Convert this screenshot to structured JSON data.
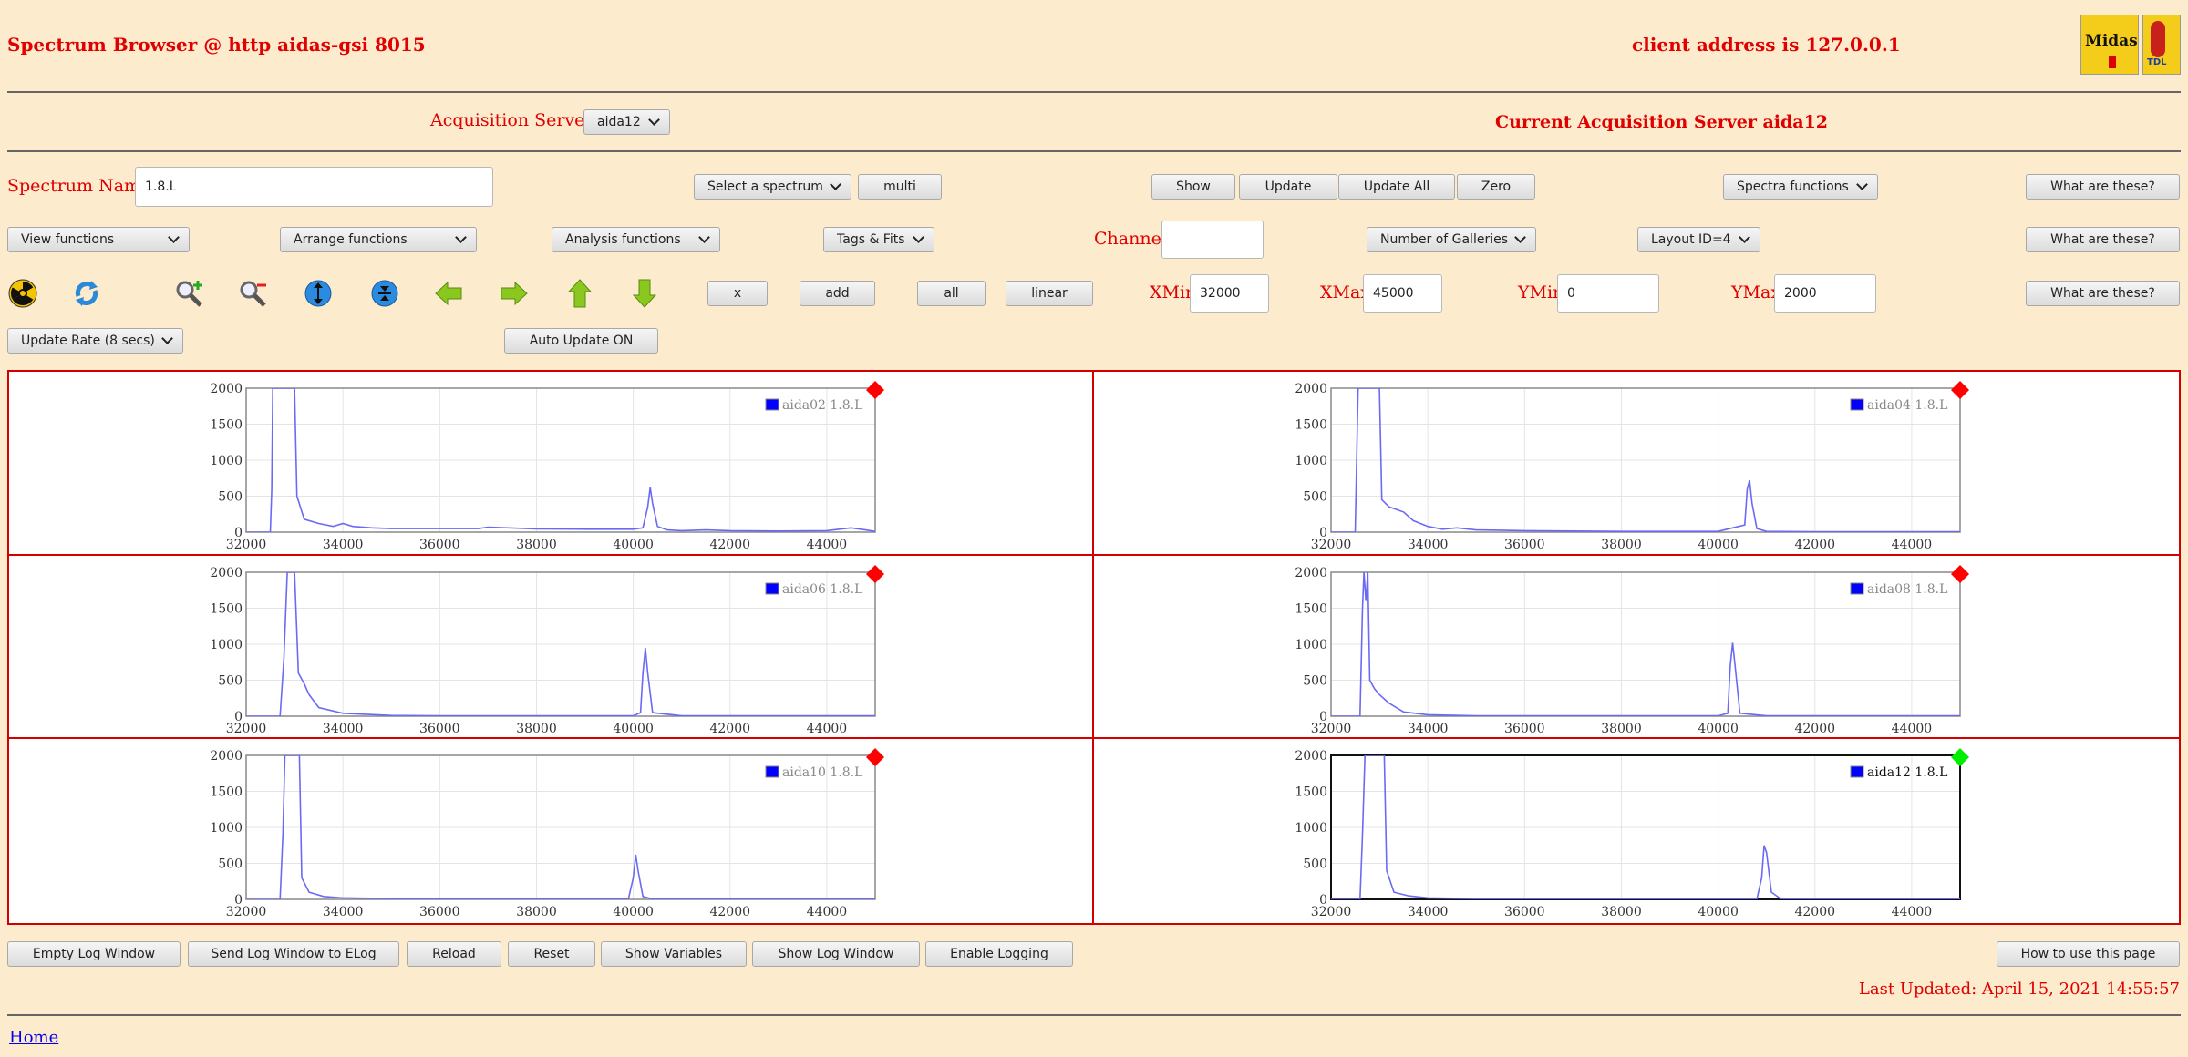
{
  "header": {
    "title": "Spectrum Browser @ http aidas-gsi 8015",
    "client_address": "client address is 127.0.0.1",
    "logo1_text": "Midas",
    "logo2_text": "TDL"
  },
  "acq": {
    "label": "Acquisition Servers",
    "selected": "aida12",
    "current": "Current Acquisition Server aida12"
  },
  "spectrum": {
    "name_label": "Spectrum Name:",
    "name_value": "1.8.L",
    "select_label": "Select a spectrum",
    "multi_label": "multi",
    "show_label": "Show",
    "update_label": "Update",
    "update_all_label": "Update All",
    "zero_label": "Zero",
    "spectra_functions_label": "Spectra functions",
    "help1_label": "What are these?"
  },
  "functions": {
    "view": "View functions",
    "arrange": "Arrange functions",
    "analysis": "Analysis functions",
    "tags": "Tags & Fits",
    "channel_label": "Channel:",
    "channel_value": "",
    "galleries": "Number of Galleries",
    "layout": "Layout ID=4",
    "help2_label": "What are these?"
  },
  "toolbar": {
    "icons": [
      "radiation-icon",
      "refresh-icon",
      "zoom-in-icon",
      "zoom-out-icon",
      "expand-vertical-icon",
      "compress-vertical-icon",
      "arrow-left-icon",
      "arrow-right-icon",
      "arrow-up-icon",
      "arrow-down-icon"
    ],
    "x_label": "x",
    "add_label": "add",
    "all_label": "all",
    "linear_label": "linear",
    "xmin_label": "XMin",
    "xmin_value": "32000",
    "xmax_label": "XMax",
    "xmax_value": "45000",
    "ymin_label": "YMin",
    "ymin_value": "0",
    "ymax_label": "YMax",
    "ymax_value": "2000",
    "help3_label": "What are these?"
  },
  "rate": {
    "update_rate": "Update Rate (8 secs)",
    "auto_update": "Auto Update ON"
  },
  "colors": {
    "background": "#fdebcd",
    "accent": "#e00000",
    "series": "#0000ff",
    "line": "#6a6af5",
    "status_red": "#ff0000",
    "status_green": "#00ee00"
  },
  "chart_data": [
    {
      "type": "line",
      "name": "aida02 1.8.L",
      "status": "red",
      "xlim": [
        32000,
        45000
      ],
      "ylim": [
        0,
        2000
      ],
      "x_ticks": [
        "32000",
        "34000",
        "36000",
        "38000",
        "40000",
        "42000",
        "44000"
      ],
      "y_ticks": [
        "0",
        "500",
        "1000",
        "1500",
        "2000"
      ],
      "x": [
        32000,
        32500,
        32530,
        32550,
        32600,
        33000,
        33050,
        33200,
        33500,
        33800,
        34000,
        34200,
        34600,
        35000,
        36000,
        36800,
        37000,
        38000,
        39000,
        40000,
        40200,
        40300,
        40350,
        40400,
        40500,
        40700,
        41000,
        41500,
        42000,
        43000,
        44000,
        44500,
        44800,
        45000
      ],
      "y": [
        0,
        0,
        600,
        2000,
        2000,
        2000,
        500,
        180,
        120,
        80,
        120,
        80,
        60,
        50,
        50,
        50,
        70,
        45,
        40,
        40,
        60,
        350,
        620,
        400,
        80,
        30,
        20,
        30,
        20,
        15,
        20,
        60,
        30,
        10
      ]
    },
    {
      "type": "line",
      "name": "aida04 1.8.L",
      "status": "red",
      "xlim": [
        32000,
        45000
      ],
      "ylim": [
        0,
        2000
      ],
      "x_ticks": [
        "32000",
        "34000",
        "36000",
        "38000",
        "40000",
        "42000",
        "44000"
      ],
      "y_ticks": [
        "0",
        "500",
        "1000",
        "1500",
        "2000"
      ],
      "x": [
        32000,
        32500,
        32560,
        32600,
        33000,
        33050,
        33200,
        33500,
        33700,
        34000,
        34300,
        34600,
        35000,
        36000,
        38000,
        40000,
        40550,
        40600,
        40650,
        40700,
        40800,
        41000,
        42000,
        44000,
        45000
      ],
      "y": [
        0,
        0,
        2000,
        2000,
        2000,
        450,
        350,
        280,
        160,
        80,
        40,
        60,
        30,
        20,
        10,
        10,
        100,
        600,
        720,
        400,
        50,
        10,
        5,
        5,
        5
      ]
    },
    {
      "type": "line",
      "name": "aida06 1.8.L",
      "status": "red",
      "xlim": [
        32000,
        45000
      ],
      "ylim": [
        0,
        2000
      ],
      "x_ticks": [
        "32000",
        "34000",
        "36000",
        "38000",
        "40000",
        "42000",
        "44000"
      ],
      "y_ticks": [
        "0",
        "500",
        "1000",
        "1500",
        "2000"
      ],
      "x": [
        32000,
        32700,
        32780,
        32850,
        33000,
        33080,
        33200,
        33300,
        33500,
        34000,
        35000,
        36000,
        38000,
        40000,
        40150,
        40200,
        40250,
        40300,
        40400,
        41000,
        42000,
        44000,
        45000
      ],
      "y": [
        0,
        0,
        800,
        2000,
        2000,
        600,
        450,
        300,
        120,
        40,
        10,
        5,
        5,
        5,
        50,
        600,
        950,
        600,
        50,
        5,
        5,
        5,
        5
      ]
    },
    {
      "type": "line",
      "name": "aida08 1.8.L",
      "status": "red",
      "xlim": [
        32000,
        45000
      ],
      "ylim": [
        0,
        2000
      ],
      "x_ticks": [
        "32000",
        "34000",
        "36000",
        "38000",
        "40000",
        "42000",
        "44000"
      ],
      "y_ticks": [
        "0",
        "500",
        "1000",
        "1500",
        "2000"
      ],
      "x": [
        32000,
        32600,
        32650,
        32680,
        32720,
        32760,
        32800,
        32900,
        33000,
        33200,
        33500,
        34000,
        35000,
        36000,
        38000,
        40000,
        40200,
        40250,
        40300,
        40350,
        40450,
        41000,
        42000,
        44000,
        45000
      ],
      "y": [
        0,
        0,
        1500,
        2000,
        1600,
        2000,
        500,
        380,
        300,
        180,
        60,
        20,
        5,
        5,
        5,
        5,
        40,
        700,
        1020,
        700,
        40,
        5,
        5,
        5,
        5
      ]
    },
    {
      "type": "line",
      "name": "aida10 1.8.L",
      "status": "red",
      "xlim": [
        32000,
        45000
      ],
      "ylim": [
        0,
        2000
      ],
      "x_ticks": [
        "32000",
        "34000",
        "36000",
        "38000",
        "40000",
        "42000",
        "44000"
      ],
      "y_ticks": [
        "0",
        "500",
        "1000",
        "1500",
        "2000"
      ],
      "x": [
        32000,
        32700,
        32760,
        32800,
        33100,
        33150,
        33300,
        33600,
        34000,
        35000,
        36000,
        38000,
        39900,
        40000,
        40050,
        40100,
        40200,
        40400,
        41000,
        42000,
        44000,
        45000
      ],
      "y": [
        0,
        0,
        900,
        2000,
        2000,
        300,
        100,
        40,
        20,
        10,
        5,
        5,
        5,
        300,
        620,
        400,
        40,
        5,
        5,
        5,
        5,
        5
      ]
    },
    {
      "type": "line",
      "name": "aida12 1.8.L",
      "status": "green",
      "xlim": [
        32000,
        45000
      ],
      "ylim": [
        0,
        2000
      ],
      "x_ticks": [
        "32000",
        "34000",
        "36000",
        "38000",
        "40000",
        "42000",
        "44000"
      ],
      "y_ticks": [
        "0",
        "500",
        "1000",
        "1500",
        "2000"
      ],
      "x": [
        32000,
        32600,
        32650,
        32700,
        33100,
        33150,
        33300,
        33600,
        34000,
        35000,
        36000,
        38000,
        40000,
        40800,
        40900,
        40950,
        41000,
        41100,
        41300,
        42000,
        44000,
        45000
      ],
      "y": [
        0,
        0,
        900,
        2000,
        2000,
        400,
        100,
        50,
        20,
        10,
        5,
        5,
        5,
        5,
        300,
        750,
        650,
        100,
        5,
        5,
        5,
        5
      ]
    }
  ],
  "footer": {
    "empty_log": "Empty Log Window",
    "send_log": "Send Log Window to ELog",
    "reload": "Reload",
    "reset": "Reset",
    "show_variables": "Show Variables",
    "show_log": "Show Log Window",
    "enable_logging": "Enable Logging",
    "how_to": "How to use this page",
    "last_updated": "Last Updated: April 15, 2021 14:55:57",
    "home": "Home"
  }
}
